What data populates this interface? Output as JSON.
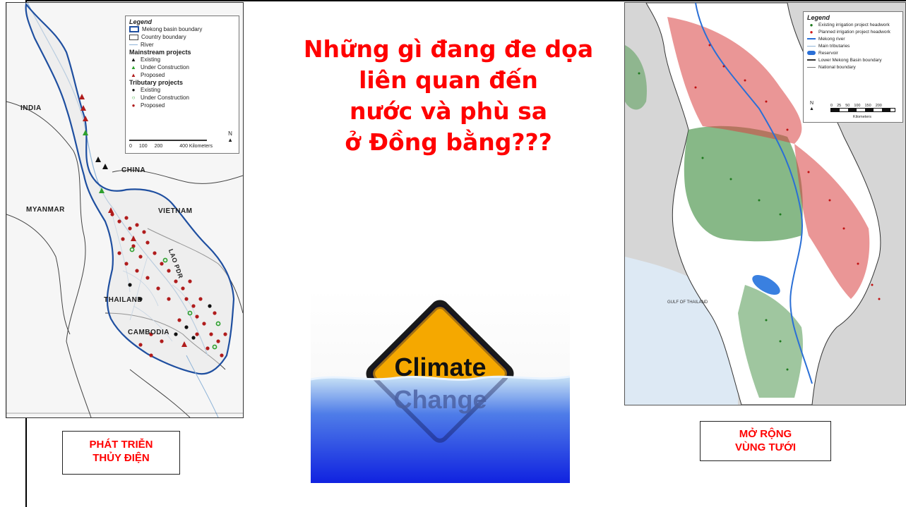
{
  "title": {
    "line1": "Những gì đang đe dọa",
    "line2": "liên quan đến",
    "line3": "nước và phù sa",
    "line4": "ở Đồng bằng???"
  },
  "left_label": {
    "line1": "PHÁT TRIỄN",
    "line2": "THỦY ĐIỆN"
  },
  "right_label": {
    "line1": "MỞ RỘNG",
    "line2": "VÙNG TƯỚI"
  },
  "climate_sign": {
    "line1": "Climate",
    "line2": "Change"
  },
  "left_map": {
    "legend_title": "Legend",
    "items": [
      "Mekong basin boundary",
      "Country boundary",
      "River"
    ],
    "mainstream_title": "Mainstream projects",
    "mainstream": [
      "Existing",
      "Under Construction",
      "Proposed"
    ],
    "tributary_title": "Tributary projects",
    "tributary": [
      "Existing",
      "Under Construction",
      "Proposed"
    ],
    "scale": [
      "0",
      "100",
      "200",
      "400 Kilometers"
    ],
    "north": "N",
    "countries": [
      "INDIA",
      "CHINA",
      "MYANMAR",
      "VIETNAM",
      "THAILAND",
      "CAMBODIA",
      "LAO PDR"
    ]
  },
  "right_map": {
    "legend_title": "Legend",
    "items": [
      "Existing irrigation project headwork",
      "Planned irrigation project headwork",
      "Mekong river",
      "Main tributaries",
      "Reservoir",
      "Lower Mekong Basin boundary",
      "National boundary"
    ],
    "scale": [
      "0",
      "25",
      "50",
      "100",
      "150",
      "200"
    ],
    "scale_unit": "Kilometers",
    "north": "N",
    "gulf": "GULF OF THAILAND"
  },
  "colors": {
    "title_red": "#ff0000",
    "basin_blue": "#1f4fa0",
    "proposed_red": "#b01c1c",
    "construction_green": "#2ea02e",
    "existing_black": "#111111",
    "irrigation_green": "#2e8b2e",
    "irrigation_red": "#d01818",
    "sign_yellow": "#f5a800",
    "water_blue": "#1a3ad8"
  }
}
